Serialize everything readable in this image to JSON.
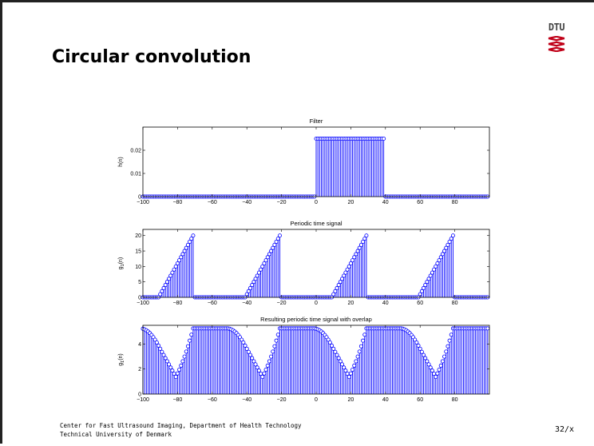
{
  "slide": {
    "title": "Circular convolution",
    "logo_text": "DTU",
    "footer_line1": "Center for Fast Ultrasound Imaging, Department of Health Technology",
    "footer_line2": "Technical University of Denmark",
    "page_number": "32/x"
  },
  "colors": {
    "stem": "#0000ff",
    "axes": "#000000"
  },
  "chart_data": [
    {
      "type": "stem",
      "title": "Filter",
      "ylabel": "h(n)",
      "xlim": [
        -100,
        100
      ],
      "ylim": [
        0,
        0.03
      ],
      "xticks": [
        -100,
        -80,
        -60,
        -40,
        -20,
        0,
        20,
        40,
        60,
        80
      ],
      "yticks": [
        0,
        0.01,
        0.02
      ],
      "xticklabels": [
        "−100",
        "−80",
        "−60",
        "−40",
        "−20",
        "0",
        "20",
        "40",
        "60",
        "80"
      ],
      "yticklabels": [
        "0",
        "0.01",
        "0.02"
      ],
      "description_formula": "h(n) = 0.025 for 0 <= n <= 39, else 0",
      "x_start": -100,
      "x_end": 99,
      "nonzero_range": [
        0,
        39
      ],
      "nonzero_value": 0.025
    },
    {
      "type": "stem",
      "title": "Periodic time signal",
      "ylabel": "g",
      "ylabel_subscript": "1",
      "ylabel_suffix": "(n)",
      "xlim": [
        -100,
        100
      ],
      "ylim": [
        0,
        22
      ],
      "xticks": [
        -100,
        -80,
        -60,
        -40,
        -20,
        0,
        20,
        40,
        60,
        80
      ],
      "yticks": [
        0,
        5,
        10,
        15,
        20
      ],
      "xticklabels": [
        "−100",
        "−80",
        "−60",
        "−40",
        "−20",
        "0",
        "20",
        "40",
        "60",
        "80"
      ],
      "yticklabels": [
        "0",
        "5",
        "10",
        "15",
        "20"
      ],
      "period": 50,
      "ramp": {
        "start_offset": 10,
        "end_offset": 29,
        "start_value": 1,
        "end_value": 20
      },
      "x_start": -100,
      "x_end": 99
    },
    {
      "type": "stem",
      "title": "Resulting periodic time signal with overlap",
      "ylabel": "g",
      "ylabel_subscript": "1",
      "ylabel_suffix": "(n)",
      "xlim": [
        -100,
        100
      ],
      "ylim": [
        0,
        5.5
      ],
      "xticks": [
        -100,
        -80,
        -60,
        -40,
        -20,
        0,
        20,
        40,
        60,
        80
      ],
      "yticks": [
        0,
        2,
        4
      ],
      "xticklabels": [
        "−100",
        "−80",
        "−60",
        "−40",
        "−20",
        "0",
        "20",
        "40",
        "60",
        "80"
      ],
      "yticklabels": [
        "0",
        "2",
        "4"
      ],
      "derived_from": "circular convolution of panel 2 with panel 1, period 50",
      "max_value": 5.25,
      "min_value": 1.3,
      "x_start": -100,
      "x_end": 99
    }
  ]
}
